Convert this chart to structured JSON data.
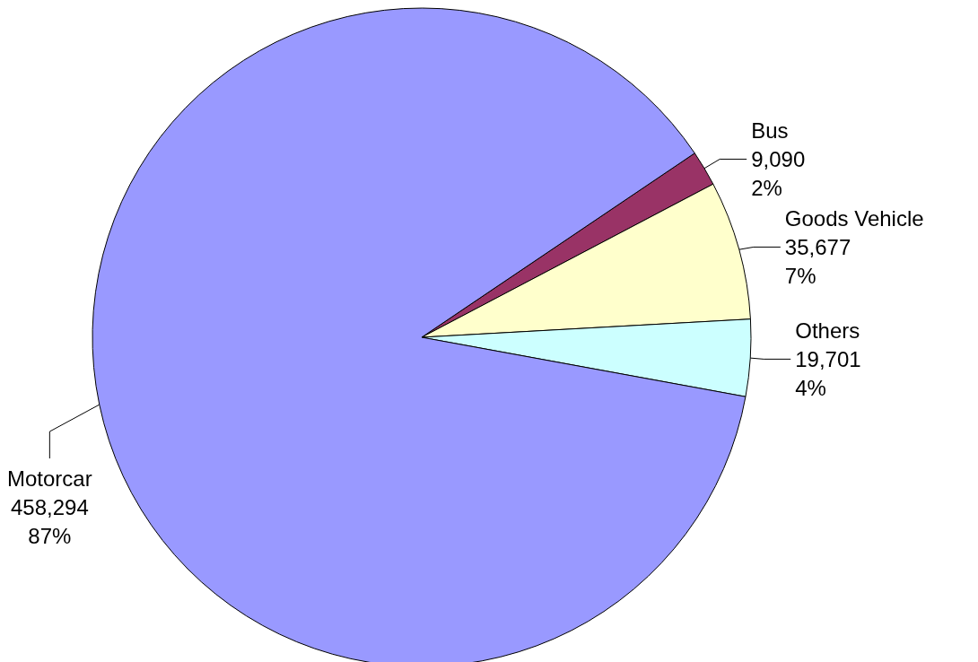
{
  "chart_data": {
    "type": "pie",
    "categories": [
      "Bus",
      "Goods Vehicle",
      "Others",
      "Motorcar"
    ],
    "values": [
      9090,
      35677,
      19701,
      458294
    ],
    "colors": [
      "#993366",
      "#ffffcc",
      "#ccffff",
      "#9999ff"
    ],
    "value_labels": [
      "9,090\n2%",
      "35,677\n7%",
      "19,701\n4%",
      "458,294\n87%"
    ]
  }
}
